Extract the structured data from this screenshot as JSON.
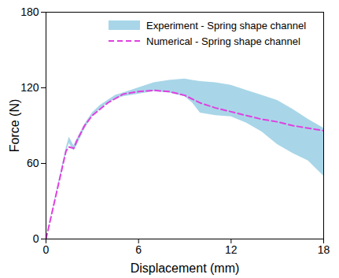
{
  "chart_data": {
    "type": "line",
    "xlabel": "Displacement (mm)",
    "ylabel": "Force (N)",
    "xlim": [
      0,
      18
    ],
    "xticks": [
      0,
      6,
      12,
      18
    ],
    "ylim": [
      0,
      180
    ],
    "yticks": [
      0,
      60,
      120,
      180
    ],
    "grid": false,
    "legend": "top",
    "series": [
      {
        "name": "Experiment - Spring shape channel",
        "type": "area",
        "color": "#a8d6e8",
        "x": [
          0,
          1.3,
          1.5,
          1.8,
          2.0,
          2.5,
          3.0,
          3.5,
          4.0,
          4.5,
          5.0,
          6.0,
          7.0,
          8.0,
          9.0,
          9.5,
          10.0,
          11.0,
          12.0,
          13.0,
          14.0,
          15.0,
          16.0,
          17.0,
          18.0
        ],
        "lower": [
          0,
          68,
          76,
          70,
          74,
          87,
          97,
          103,
          108,
          111,
          113,
          115,
          117,
          116,
          113,
          108,
          100,
          98,
          97,
          92,
          85,
          75,
          68,
          62,
          50
        ],
        "upper": [
          0,
          72,
          81,
          74,
          79,
          91,
          100,
          106,
          110,
          114,
          116,
          120,
          124,
          126,
          127,
          126,
          125,
          124,
          122,
          118,
          114,
          110,
          103,
          95,
          88
        ]
      },
      {
        "name": "Numerical - Spring shape channel",
        "type": "line",
        "color": "#e040e0",
        "line_style": "dashed",
        "x": [
          0,
          1.3,
          1.5,
          1.8,
          2.0,
          2.5,
          3.0,
          4.0,
          5.0,
          6.0,
          7.0,
          8.0,
          9.0,
          10.0,
          11.0,
          12.0,
          13.0,
          14.0,
          15.0,
          16.0,
          17.0,
          18.0
        ],
        "values": [
          0,
          70,
          73,
          72,
          78,
          90,
          98,
          108,
          115,
          117,
          118,
          117,
          114,
          108,
          104,
          101,
          98,
          95,
          93,
          90,
          88,
          86
        ]
      }
    ]
  }
}
